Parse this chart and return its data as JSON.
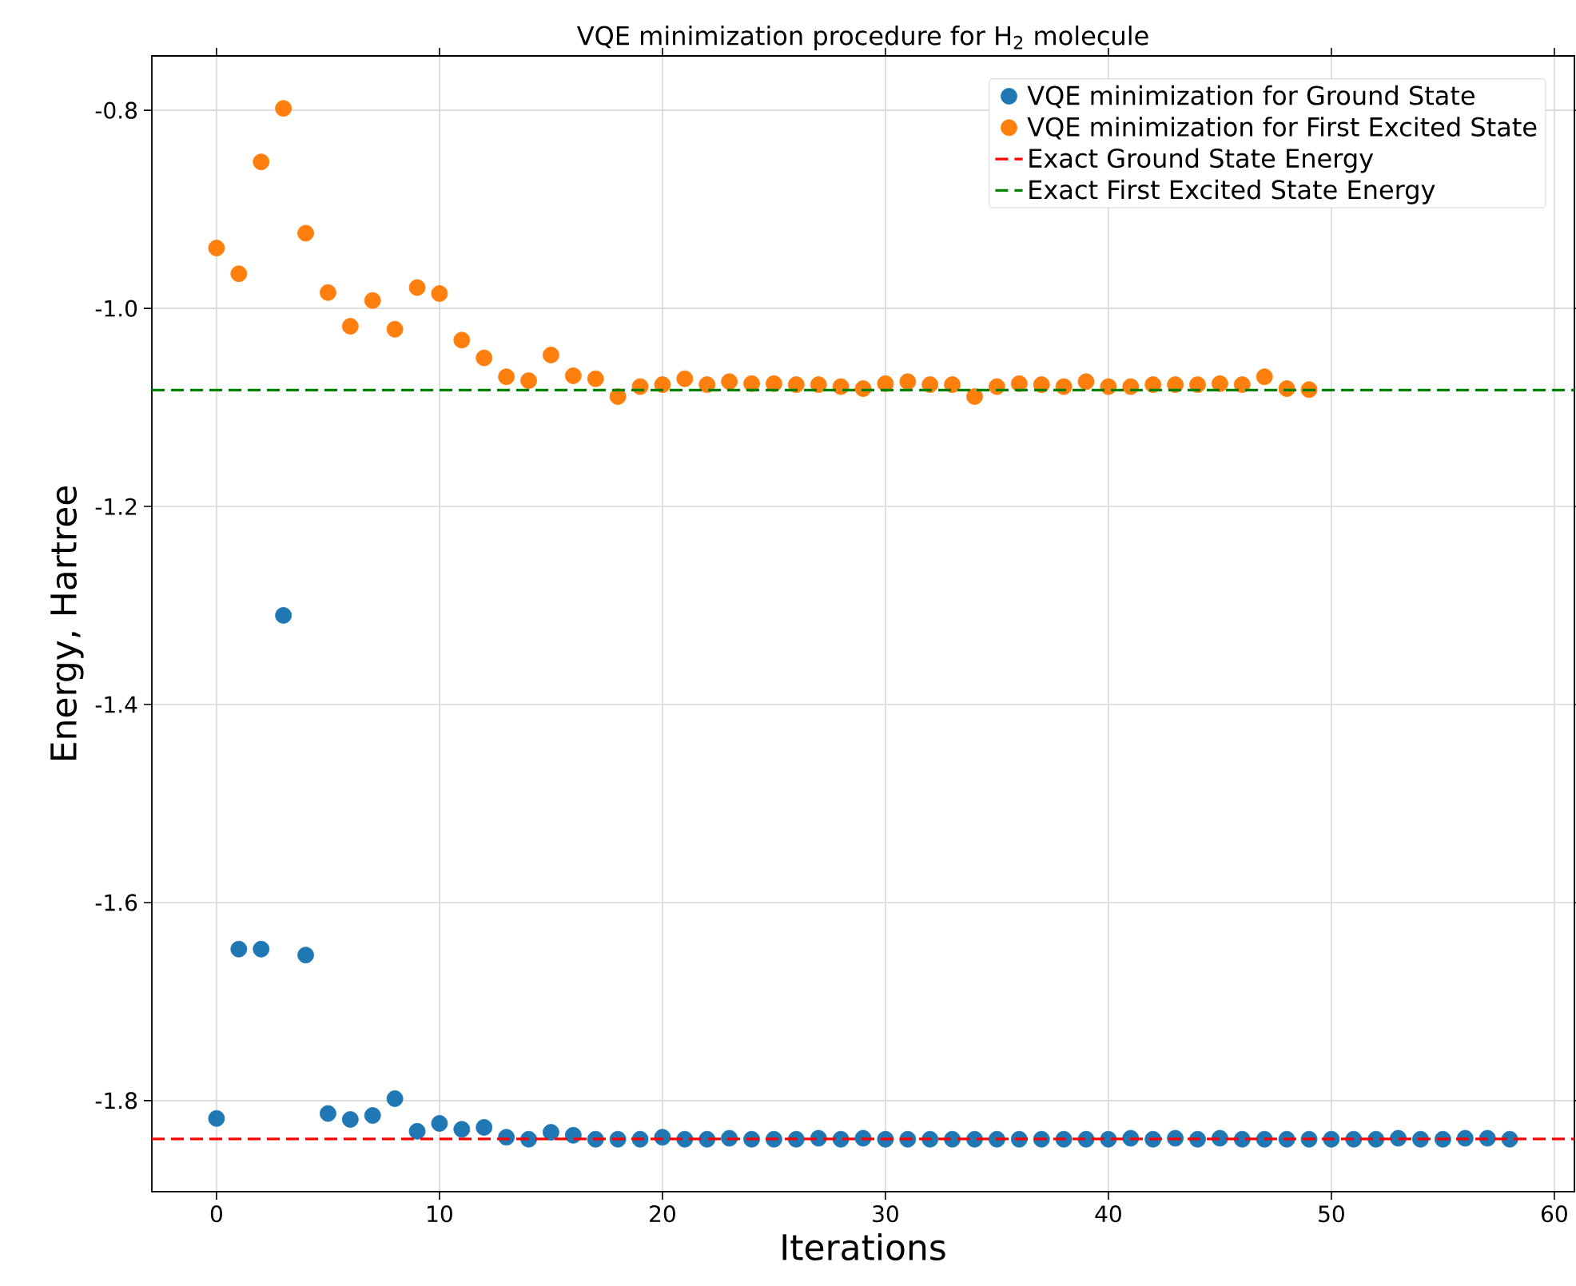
{
  "chart_data": {
    "type": "scatter",
    "title": "VQE minimization procedure for H$_{2}$ molecule",
    "xlabel": "Iterations",
    "ylabel": "Energy, Hartree",
    "xlim": [
      -2.9,
      60.9
    ],
    "ylim": [
      -1.892,
      -0.745
    ],
    "xticks": [
      0,
      10,
      20,
      30,
      40,
      50,
      60
    ],
    "yticks": [
      -1.8,
      -1.6,
      -1.4,
      -1.2,
      {
        "value": -1.0,
        "label": "-1.0"
      },
      -0.8
    ],
    "grid": true,
    "legend": "top right",
    "marker": "circle",
    "series": [
      {
        "name": "VQE minimization for Ground State",
        "color": "#1f77b4",
        "x": [
          0,
          1,
          2,
          3,
          4,
          5,
          6,
          7,
          8,
          9,
          10,
          11,
          12,
          13,
          14,
          15,
          16,
          17,
          18,
          19,
          20,
          21,
          22,
          23,
          24,
          25,
          26,
          27,
          28,
          29,
          30,
          31,
          32,
          33,
          34,
          35,
          36,
          37,
          38,
          39,
          40,
          41,
          42,
          43,
          44,
          45,
          46,
          47,
          48,
          49,
          50,
          51,
          52,
          53,
          54,
          55,
          56,
          57,
          58
        ],
        "values": [
          -1.818,
          -1.647,
          -1.647,
          -1.31,
          -1.653,
          -1.813,
          -1.819,
          -1.815,
          -1.798,
          -1.831,
          -1.823,
          -1.829,
          -1.827,
          -1.837,
          -1.839,
          -1.832,
          -1.835,
          -1.839,
          -1.839,
          -1.839,
          -1.837,
          -1.839,
          -1.839,
          -1.838,
          -1.839,
          -1.839,
          -1.839,
          -1.838,
          -1.839,
          -1.838,
          -1.839,
          -1.839,
          -1.839,
          -1.839,
          -1.839,
          -1.839,
          -1.839,
          -1.839,
          -1.839,
          -1.839,
          -1.839,
          -1.838,
          -1.839,
          -1.838,
          -1.839,
          -1.838,
          -1.839,
          -1.839,
          -1.839,
          -1.839,
          -1.839,
          -1.839,
          -1.839,
          -1.838,
          -1.839,
          -1.839,
          -1.838,
          -1.838,
          -1.839
        ]
      },
      {
        "name": "VQE minimization for First Excited State",
        "color": "#ff7f0e",
        "x": [
          0,
          1,
          2,
          3,
          4,
          5,
          6,
          7,
          8,
          9,
          10,
          11,
          12,
          13,
          14,
          15,
          16,
          17,
          18,
          19,
          20,
          21,
          22,
          23,
          24,
          25,
          26,
          27,
          28,
          29,
          30,
          31,
          32,
          33,
          34,
          35,
          36,
          37,
          38,
          39,
          40,
          41,
          42,
          43,
          44,
          45,
          46,
          47,
          48,
          49
        ],
        "values": [
          -0.939,
          -0.965,
          -0.852,
          -0.798,
          -0.924,
          -0.984,
          -1.018,
          -0.992,
          -1.021,
          -0.979,
          -0.985,
          -1.032,
          -1.05,
          -1.069,
          -1.073,
          -1.047,
          -1.068,
          -1.071,
          -1.089,
          -1.079,
          -1.077,
          -1.071,
          -1.077,
          -1.074,
          -1.076,
          -1.076,
          -1.077,
          -1.077,
          -1.079,
          -1.081,
          -1.076,
          -1.074,
          -1.077,
          -1.077,
          -1.089,
          -1.079,
          -1.076,
          -1.077,
          -1.079,
          -1.074,
          -1.079,
          -1.079,
          -1.077,
          -1.077,
          -1.077,
          -1.076,
          -1.077,
          -1.069,
          -1.081,
          -1.082
        ]
      }
    ],
    "ref_lines": [
      {
        "axis": "y",
        "value": -1.8387,
        "label": "Exact Ground State Energy",
        "color": "#ff0000",
        "line_style": "dashed"
      },
      {
        "axis": "y",
        "value": -1.0825,
        "label": "Exact First Excited State Energy",
        "color": "#008000",
        "line_style": "dashed"
      }
    ]
  }
}
